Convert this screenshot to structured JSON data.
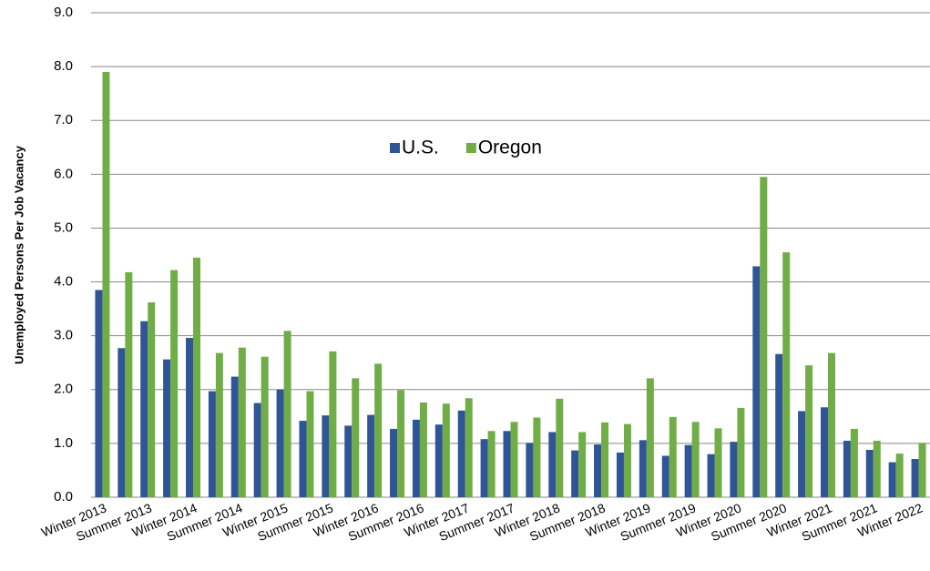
{
  "chart_data": {
    "type": "bar",
    "y_label": "Unemployed Persons Per Job Vacancy",
    "categories": [
      "Winter 2013",
      null,
      "Summer 2013",
      null,
      "Winter 2014",
      null,
      "Summer 2014",
      null,
      "Winter 2015",
      null,
      "Summer 2015",
      null,
      "Winter 2016",
      null,
      "Summer 2016",
      null,
      "Winter 2017",
      null,
      "Summer 2017",
      null,
      "Winter 2018",
      null,
      "Summer 2018",
      null,
      "Winter 2019",
      null,
      "Summer 2019",
      null,
      "Winter 2020",
      null,
      "Summer 2020",
      null,
      "Winter 2021",
      null,
      "Summer 2021",
      null,
      "Winter 2022"
    ],
    "series": [
      {
        "name": "U.S.",
        "color": "#2f5597",
        "values": [
          3.85,
          2.77,
          3.27,
          2.56,
          2.96,
          1.97,
          2.24,
          1.75,
          2.0,
          1.42,
          1.52,
          1.33,
          1.53,
          1.27,
          1.44,
          1.35,
          1.61,
          1.08,
          1.23,
          1.01,
          1.21,
          0.87,
          0.98,
          0.83,
          1.06,
          0.77,
          0.97,
          0.8,
          1.03,
          4.29,
          2.66,
          1.6,
          1.67,
          1.05,
          0.88,
          0.65,
          0.71
        ]
      },
      {
        "name": "Oregon",
        "color": "#70ad47",
        "values": [
          7.9,
          4.18,
          3.62,
          4.22,
          4.45,
          2.68,
          2.78,
          2.61,
          3.09,
          1.97,
          2.71,
          2.21,
          2.48,
          1.99,
          1.76,
          1.74,
          1.84,
          1.23,
          1.4,
          1.48,
          1.83,
          1.21,
          1.39,
          1.36,
          2.21,
          1.49,
          1.4,
          1.28,
          1.66,
          5.95,
          4.55,
          2.45,
          2.68,
          1.27,
          1.05,
          0.81,
          1.01
        ]
      }
    ],
    "ylim": [
      0,
      9
    ],
    "yticks": [
      {
        "value": 0,
        "label": "0.0"
      },
      {
        "value": 1,
        "label": "1.0"
      },
      {
        "value": 2,
        "label": "2.0"
      },
      {
        "value": 3,
        "label": "3.0"
      },
      {
        "value": 4,
        "label": "4.0"
      },
      {
        "value": 5,
        "label": "5.0"
      },
      {
        "value": 6,
        "label": "6.0"
      },
      {
        "value": 7,
        "label": "7.0"
      },
      {
        "value": 8,
        "label": "8.0"
      },
      {
        "value": 9,
        "label": "9.0"
      }
    ],
    "grid": true
  }
}
